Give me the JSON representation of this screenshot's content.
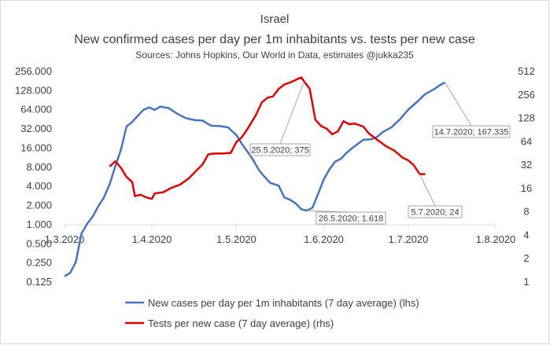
{
  "chart_data": {
    "type": "line",
    "title": "Israel",
    "subtitle": "New confirmed cases per day per 1m inhabitants vs. tests per new case",
    "source": "Sources: Johns Hopkins, Our World in Data, estimates @jukka235",
    "x_axis": {
      "ticks": [
        {
          "label": "1.3.2020",
          "day": 0
        },
        {
          "label": "1.4.2020",
          "day": 31
        },
        {
          "label": "1.5.2020",
          "day": 61
        },
        {
          "label": "1.6.2020",
          "day": 92
        },
        {
          "label": "1.7.2020",
          "day": 122
        },
        {
          "label": "1.8.2020",
          "day": 153
        }
      ],
      "range": [
        "1.3.2020",
        "1.8.2020"
      ]
    },
    "y_left": {
      "scale": "log2",
      "ticks": [
        {
          "label": "0.125",
          "value": 0.125
        },
        {
          "label": "0.250",
          "value": 0.25
        },
        {
          "label": "0.500",
          "value": 0.5
        },
        {
          "label": "1.000",
          "value": 1
        },
        {
          "label": "2.000",
          "value": 2
        },
        {
          "label": "4.000",
          "value": 4
        },
        {
          "label": "8.000",
          "value": 8
        },
        {
          "label": "16.000",
          "value": 16
        },
        {
          "label": "32.000",
          "value": 32
        },
        {
          "label": "64.000",
          "value": 64
        },
        {
          "label": "128.000",
          "value": 128
        },
        {
          "label": "256.000",
          "value": 256
        }
      ]
    },
    "y_right": {
      "scale": "log2",
      "ticks": [
        {
          "label": "1",
          "value": 1
        },
        {
          "label": "2",
          "value": 2
        },
        {
          "label": "4",
          "value": 4
        },
        {
          "label": "8",
          "value": 8
        },
        {
          "label": "16",
          "value": 16
        },
        {
          "label": "32",
          "value": 32
        },
        {
          "label": "64",
          "value": 64
        },
        {
          "label": "128",
          "value": 128
        },
        {
          "label": "256",
          "value": 256
        },
        {
          "label": "512",
          "value": 512
        }
      ]
    },
    "series": [
      {
        "name": "New cases per day per 1m inhabitants (7 day average) (lhs)",
        "axis": "left",
        "color": "#4472C4",
        "points": [
          {
            "x": "1.3.2020",
            "y": 0.15
          },
          {
            "x": "3.3.2020",
            "y": 0.17
          },
          {
            "x": "5.3.2020",
            "y": 0.25
          },
          {
            "x": "7.3.2020",
            "y": 0.7
          },
          {
            "x": "9.3.2020",
            "y": 1.0
          },
          {
            "x": "11.3.2020",
            "y": 1.3
          },
          {
            "x": "13.3.2020",
            "y": 1.9
          },
          {
            "x": "15.3.2020",
            "y": 2.6
          },
          {
            "x": "17.3.2020",
            "y": 4.2
          },
          {
            "x": "19.3.2020",
            "y": 8.0
          },
          {
            "x": "21.3.2020",
            "y": 14.5
          },
          {
            "x": "23.3.2020",
            "y": 34.0
          },
          {
            "x": "25.3.2020",
            "y": 40.0
          },
          {
            "x": "27.3.2020",
            "y": 50.0
          },
          {
            "x": "29.3.2020",
            "y": 62.0
          },
          {
            "x": "31.3.2020",
            "y": 68.0
          },
          {
            "x": "2.4.2020",
            "y": 62.0
          },
          {
            "x": "4.4.2020",
            "y": 70.0
          },
          {
            "x": "7.4.2020",
            "y": 66.0
          },
          {
            "x": "10.4.2020",
            "y": 54.0
          },
          {
            "x": "13.4.2020",
            "y": 46.0
          },
          {
            "x": "16.4.2020",
            "y": 43.0
          },
          {
            "x": "19.4.2020",
            "y": 42.0
          },
          {
            "x": "22.4.2020",
            "y": 35.0
          },
          {
            "x": "25.4.2020",
            "y": 34.5
          },
          {
            "x": "28.4.2020",
            "y": 33.0
          },
          {
            "x": "1.5.2020",
            "y": 25.0
          },
          {
            "x": "3.5.2020",
            "y": 18.0
          },
          {
            "x": "5.5.2020",
            "y": 13.5
          },
          {
            "x": "7.5.2020",
            "y": 10.0
          },
          {
            "x": "9.5.2020",
            "y": 7.0
          },
          {
            "x": "11.5.2020",
            "y": 5.5
          },
          {
            "x": "13.5.2020",
            "y": 4.4
          },
          {
            "x": "16.5.2020",
            "y": 4.0
          },
          {
            "x": "18.5.2020",
            "y": 2.6
          },
          {
            "x": "20.5.2020",
            "y": 2.4
          },
          {
            "x": "22.5.2020",
            "y": 2.1
          },
          {
            "x": "24.5.2020",
            "y": 1.7
          },
          {
            "x": "26.5.2020",
            "y": 1.618
          },
          {
            "x": "28.5.2020",
            "y": 1.8
          },
          {
            "x": "30.5.2020",
            "y": 3.0
          },
          {
            "x": "1.6.2020",
            "y": 5.0
          },
          {
            "x": "3.6.2020",
            "y": 7.2
          },
          {
            "x": "5.6.2020",
            "y": 9.5
          },
          {
            "x": "7.6.2020",
            "y": 10.5
          },
          {
            "x": "9.6.2020",
            "y": 13.0
          },
          {
            "x": "11.6.2020",
            "y": 15.5
          },
          {
            "x": "13.6.2020",
            "y": 18.0
          },
          {
            "x": "15.6.2020",
            "y": 21.0
          },
          {
            "x": "18.6.2020",
            "y": 21.5
          },
          {
            "x": "20.6.2020",
            "y": 23.5
          },
          {
            "x": "22.6.2020",
            "y": 28.0
          },
          {
            "x": "25.6.2020",
            "y": 33.0
          },
          {
            "x": "28.6.2020",
            "y": 44.0
          },
          {
            "x": "1.7.2020",
            "y": 63.0
          },
          {
            "x": "4.7.2020",
            "y": 82.0
          },
          {
            "x": "7.7.2020",
            "y": 110.0
          },
          {
            "x": "10.7.2020",
            "y": 130.0
          },
          {
            "x": "12.7.2020",
            "y": 150.0
          },
          {
            "x": "14.7.2020",
            "y": 167.335
          }
        ]
      },
      {
        "name": "Tests per new case (7 day average) (rhs)",
        "axis": "right",
        "color": "#E00000",
        "points": [
          {
            "x": "17.3.2020",
            "y": 30.0
          },
          {
            "x": "19.3.2020",
            "y": 35.0
          },
          {
            "x": "21.3.2020",
            "y": 29.0
          },
          {
            "x": "23.3.2020",
            "y": 22.0
          },
          {
            "x": "25.3.2020",
            "y": 19.0
          },
          {
            "x": "26.3.2020",
            "y": 12.5
          },
          {
            "x": "28.3.2020",
            "y": 13.0
          },
          {
            "x": "30.3.2020",
            "y": 12.0
          },
          {
            "x": "1.4.2020",
            "y": 11.5
          },
          {
            "x": "2.4.2020",
            "y": 13.5
          },
          {
            "x": "5.4.2020",
            "y": 14.0
          },
          {
            "x": "8.4.2020",
            "y": 16.0
          },
          {
            "x": "11.4.2020",
            "y": 17.5
          },
          {
            "x": "14.4.2020",
            "y": 21.0
          },
          {
            "x": "17.4.2020",
            "y": 27.0
          },
          {
            "x": "19.4.2020",
            "y": 32.0
          },
          {
            "x": "21.4.2020",
            "y": 43.0
          },
          {
            "x": "23.4.2020",
            "y": 44.0
          },
          {
            "x": "26.4.2020",
            "y": 44.0
          },
          {
            "x": "29.4.2020",
            "y": 45.0
          },
          {
            "x": "1.5.2020",
            "y": 62.0
          },
          {
            "x": "3.5.2020",
            "y": 72.0
          },
          {
            "x": "5.5.2020",
            "y": 92.0
          },
          {
            "x": "8.5.2020",
            "y": 140.0
          },
          {
            "x": "10.5.2020",
            "y": 200.0
          },
          {
            "x": "12.5.2020",
            "y": 230.0
          },
          {
            "x": "14.5.2020",
            "y": 240.0
          },
          {
            "x": "16.5.2020",
            "y": 300.0
          },
          {
            "x": "18.5.2020",
            "y": 340.0
          },
          {
            "x": "20.5.2020",
            "y": 360.0
          },
          {
            "x": "22.5.2020",
            "y": 390.0
          },
          {
            "x": "24.5.2020",
            "y": 420.0
          },
          {
            "x": "25.5.2020",
            "y": 375.0
          },
          {
            "x": "27.5.2020",
            "y": 300.0
          },
          {
            "x": "29.5.2020",
            "y": 120.0
          },
          {
            "x": "31.5.2020",
            "y": 100.0
          },
          {
            "x": "2.6.2020",
            "y": 92.0
          },
          {
            "x": "4.6.2020",
            "y": 78.0
          },
          {
            "x": "6.6.2020",
            "y": 85.0
          },
          {
            "x": "8.6.2020",
            "y": 115.0
          },
          {
            "x": "10.6.2020",
            "y": 105.0
          },
          {
            "x": "12.6.2020",
            "y": 107.0
          },
          {
            "x": "15.6.2020",
            "y": 98.0
          },
          {
            "x": "17.6.2020",
            "y": 80.0
          },
          {
            "x": "20.6.2020",
            "y": 66.0
          },
          {
            "x": "23.6.2020",
            "y": 55.0
          },
          {
            "x": "26.6.2020",
            "y": 48.0
          },
          {
            "x": "29.6.2020",
            "y": 39.0
          },
          {
            "x": "1.7.2020",
            "y": 36.0
          },
          {
            "x": "3.7.2020",
            "y": 31.0
          },
          {
            "x": "5.7.2020",
            "y": 24.0
          },
          {
            "x": "7.7.2020",
            "y": 24.0
          }
        ]
      }
    ],
    "annotations": [
      {
        "text": "25.5.2020; 375",
        "series": 1,
        "x": "25.5.2020",
        "y": 375
      },
      {
        "text": "26.5.2020; 1.618",
        "series": 0,
        "x": "26.5.2020",
        "y": 1.618
      },
      {
        "text": "14.7.2020; 167.335",
        "series": 0,
        "x": "14.7.2020",
        "y": 167.335
      },
      {
        "text": "5.7.2020; 24",
        "series": 1,
        "x": "5.7.2020",
        "y": 24
      }
    ],
    "grid": false,
    "legend": "bottom"
  }
}
